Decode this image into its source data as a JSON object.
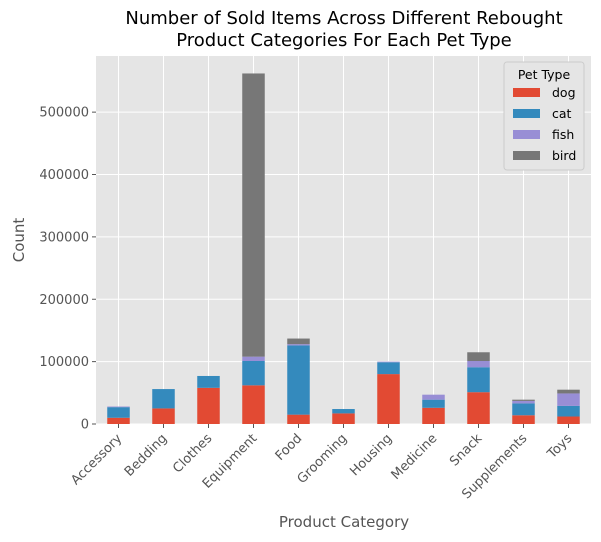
{
  "chart_data": {
    "type": "bar",
    "stacked": true,
    "title_lines": [
      "Number of Sold Items Across Different Rebought",
      "Product Categories For Each Pet Type"
    ],
    "xlabel": "Product Category",
    "ylabel": "Count",
    "ylim": [
      0,
      590000
    ],
    "y_ticks": [
      0,
      100000,
      200000,
      300000,
      400000,
      500000
    ],
    "y_tick_labels": [
      "0",
      "100000",
      "200000",
      "300000",
      "400000",
      "500000"
    ],
    "grid": true,
    "style": "ggplot",
    "categories": [
      "Accessory",
      "Bedding",
      "Clothes",
      "Equipment",
      "Food",
      "Grooming",
      "Housing",
      "Medicine",
      "Snack",
      "Supplements",
      "Toys"
    ],
    "series": [
      {
        "name": "dog",
        "color": "#E24A33",
        "values": [
          10000,
          25000,
          58000,
          62000,
          15000,
          17000,
          80000,
          26000,
          51000,
          14000,
          12000
        ]
      },
      {
        "name": "cat",
        "color": "#348ABD",
        "values": [
          17000,
          31000,
          19000,
          39000,
          111000,
          7000,
          19000,
          13000,
          40000,
          19000,
          17000
        ]
      },
      {
        "name": "fish",
        "color": "#988ED5",
        "values": [
          1000,
          0,
          0,
          7000,
          2000,
          0,
          1000,
          8000,
          10000,
          4000,
          20000
        ]
      },
      {
        "name": "bird",
        "color": "#777777",
        "values": [
          0,
          0,
          0,
          454000,
          9000,
          0,
          0,
          0,
          14000,
          2000,
          6000
        ]
      }
    ],
    "legend": {
      "title": "Pet Type",
      "placement": "top-right"
    }
  }
}
